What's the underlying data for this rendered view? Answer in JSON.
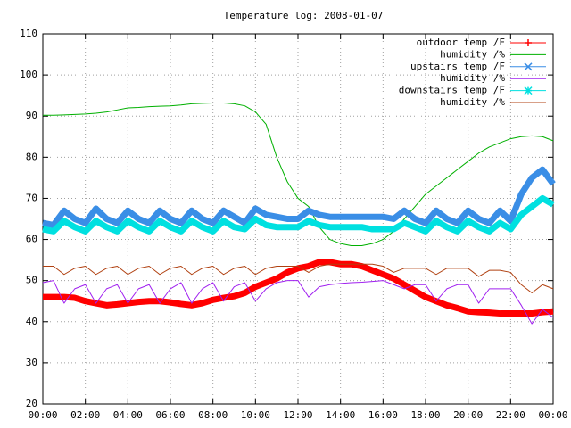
{
  "chart_data": {
    "type": "line",
    "title": "Temperature log: 2008-01-07",
    "x": [
      0,
      0.5,
      1,
      1.5,
      2,
      2.5,
      3,
      3.5,
      4,
      4.5,
      5,
      5.5,
      6,
      6.5,
      7,
      7.5,
      8,
      8.5,
      9,
      9.5,
      10,
      10.5,
      11,
      11.5,
      12,
      12.5,
      13,
      13.5,
      14,
      14.5,
      15,
      15.5,
      16,
      16.5,
      17,
      17.5,
      18,
      18.5,
      19,
      19.5,
      20,
      20.5,
      21,
      21.5,
      22,
      22.5,
      23,
      23.5,
      24
    ],
    "xlim": [
      0,
      24
    ],
    "xticks": [
      {
        "value": 0,
        "label": "00:00"
      },
      {
        "value": 2,
        "label": "02:00"
      },
      {
        "value": 4,
        "label": "04:00"
      },
      {
        "value": 6,
        "label": "06:00"
      },
      {
        "value": 8,
        "label": "08:00"
      },
      {
        "value": 10,
        "label": "10:00"
      },
      {
        "value": 12,
        "label": "12:00"
      },
      {
        "value": 14,
        "label": "14:00"
      },
      {
        "value": 16,
        "label": "16:00"
      },
      {
        "value": 18,
        "label": "18:00"
      },
      {
        "value": 20,
        "label": "20:00"
      },
      {
        "value": 22,
        "label": "22:00"
      },
      {
        "value": 24,
        "label": "00:00"
      }
    ],
    "ylim": [
      20,
      110
    ],
    "yticks": [
      20,
      30,
      40,
      50,
      60,
      70,
      80,
      90,
      100,
      110
    ],
    "grid": true,
    "legend": "top-right",
    "series": [
      {
        "name": "outdoor temp /F",
        "color": "#ff0000",
        "marker": "+",
        "values": [
          46,
          46,
          46,
          45.8,
          45,
          44.5,
          44,
          44.2,
          44.5,
          44.8,
          45,
          45,
          44.7,
          44.3,
          44,
          44.5,
          45.3,
          45.8,
          46.2,
          47,
          48.5,
          49.5,
          50.5,
          52,
          53,
          53.5,
          54.5,
          54.5,
          54,
          54,
          53.5,
          52.5,
          51.5,
          50.5,
          49,
          47.5,
          46,
          45,
          44,
          43.3,
          42.5,
          42.3,
          42.2,
          42,
          42,
          42,
          42,
          42.3,
          42.5
        ]
      },
      {
        "name": "humidity /%",
        "color": "#00b000",
        "values": [
          90.2,
          90.2,
          90.3,
          90.4,
          90.5,
          90.7,
          91,
          91.5,
          92,
          92.1,
          92.3,
          92.4,
          92.5,
          92.7,
          93,
          93.1,
          93.2,
          93.2,
          93,
          92.5,
          91,
          88,
          80,
          74,
          70,
          68,
          63,
          60,
          59,
          58.5,
          58.5,
          59,
          60,
          62,
          65,
          68,
          71,
          73,
          75,
          77,
          79,
          81,
          82.5,
          83.5,
          84.5,
          85,
          85.2,
          85,
          84
        ]
      },
      {
        "name": "upstairs temp /F",
        "color": "#3a8ee6",
        "marker": "x",
        "values": [
          64,
          63.5,
          67,
          65,
          64,
          67.5,
          65,
          64,
          67,
          65,
          64,
          67,
          65,
          64,
          67,
          65,
          64,
          67,
          65.5,
          64,
          67.5,
          66,
          65.5,
          65,
          65,
          67,
          66,
          65.5,
          65.5,
          65.5,
          65.5,
          65.5,
          65.5,
          65,
          67,
          65,
          64,
          67,
          65,
          64,
          67,
          65,
          64,
          67,
          64.5,
          71,
          75,
          77,
          73.5
        ]
      },
      {
        "name": "humidity /%",
        "color": "#a020f0",
        "values": [
          49.5,
          50,
          44.5,
          48,
          49,
          44.5,
          48,
          49,
          44.5,
          48,
          49,
          44.5,
          48,
          49.5,
          44.5,
          48,
          49.5,
          45,
          48.5,
          49.5,
          45,
          48,
          49.5,
          50,
          50,
          46,
          48.5,
          49,
          49.3,
          49.5,
          49.6,
          49.8,
          50,
          49,
          48,
          49,
          49,
          45,
          48,
          49,
          49,
          44.5,
          48,
          48,
          48,
          44,
          39.5,
          43,
          41
        ]
      },
      {
        "name": "downstairs temp /F",
        "color": "#00e0e0",
        "marker": "*",
        "values": [
          62.5,
          62,
          64.5,
          63,
          62,
          64.5,
          63,
          62,
          64.5,
          63,
          62,
          64.5,
          63,
          62,
          64.5,
          63,
          62,
          64.5,
          63,
          62.5,
          65,
          63.5,
          63,
          63,
          63,
          64.5,
          63.5,
          63,
          63,
          63,
          63,
          62.5,
          62.5,
          62.5,
          64,
          63,
          62,
          64.5,
          63,
          62,
          64.5,
          63,
          62,
          64,
          62.5,
          66,
          68,
          70,
          68.5
        ]
      },
      {
        "name": "humidity /%",
        "color": "#b04010",
        "values": [
          53.5,
          53.5,
          51.5,
          53,
          53.5,
          51.5,
          53,
          53.5,
          51.5,
          53,
          53.5,
          51.5,
          53,
          53.5,
          51.5,
          53,
          53.5,
          51.5,
          53,
          53.5,
          51.5,
          53,
          53.5,
          53.5,
          53.5,
          52,
          53.5,
          54,
          54,
          54,
          54,
          54,
          53.5,
          52,
          53,
          53,
          53,
          51.5,
          53,
          53,
          53,
          51,
          52.5,
          52.5,
          52,
          49,
          47,
          49,
          48
        ]
      }
    ]
  }
}
